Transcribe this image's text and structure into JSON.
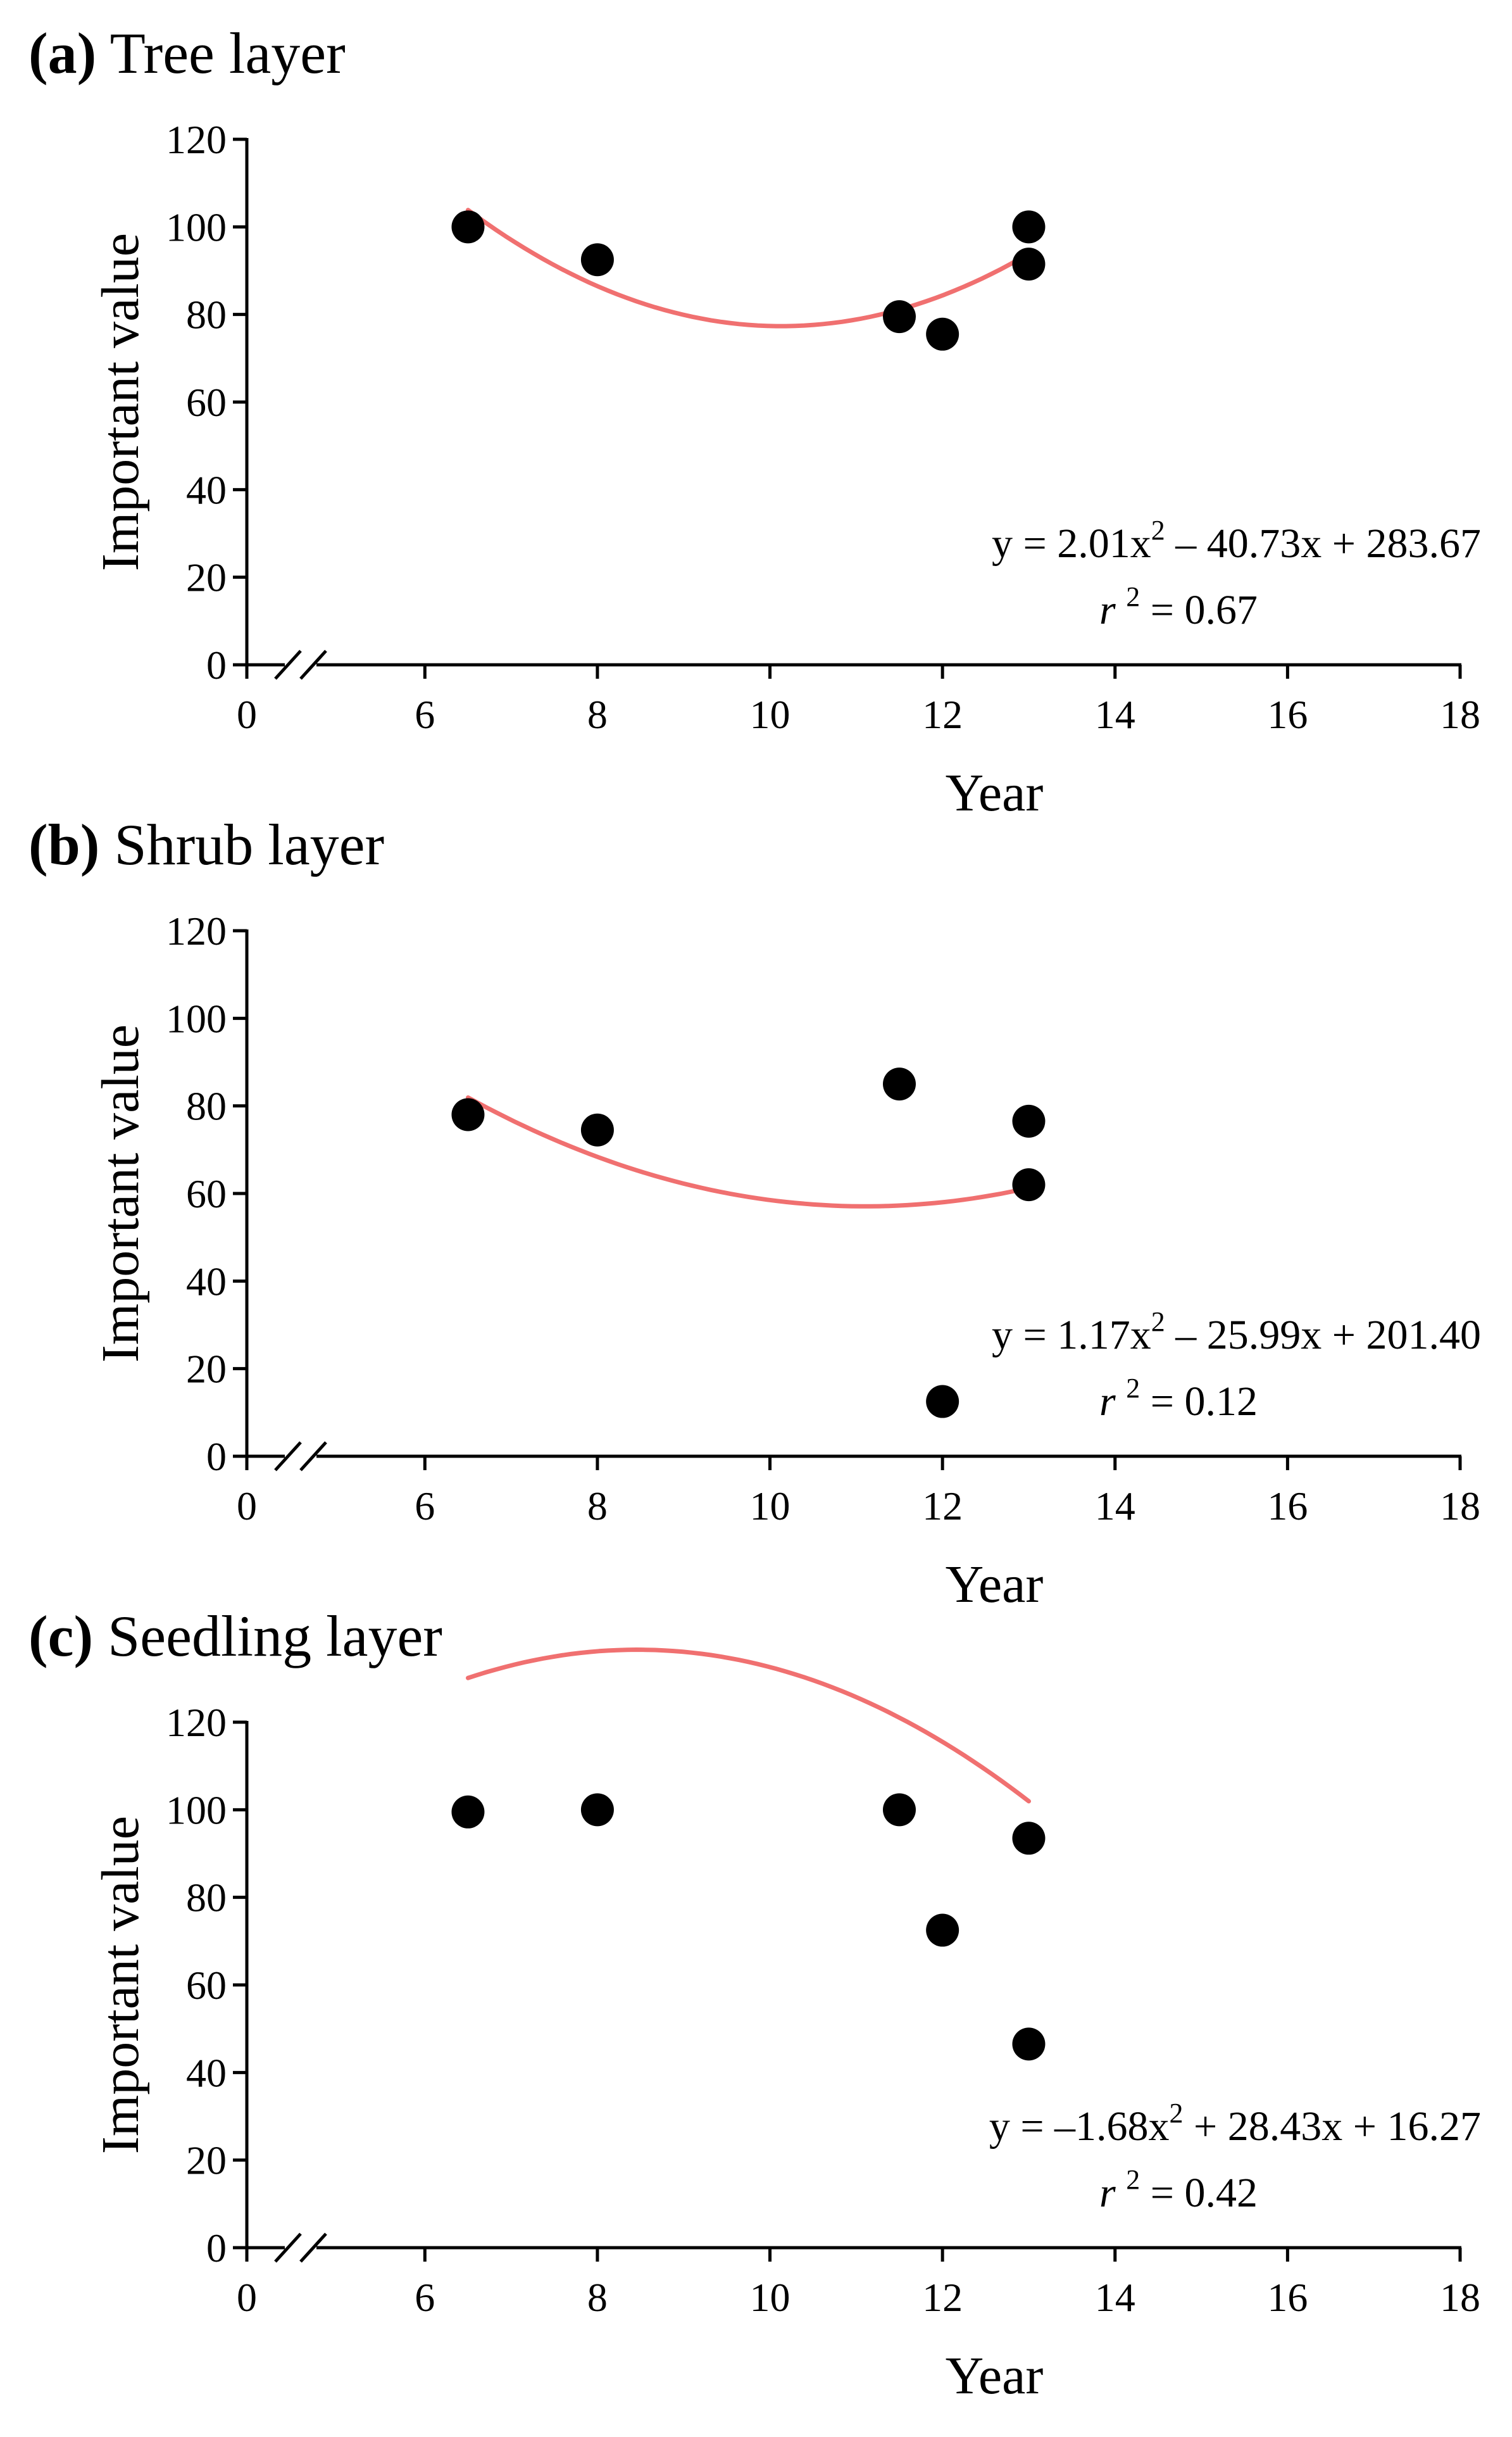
{
  "colors": {
    "points": "#000000",
    "fit_line": "#F07070",
    "axes": "#000000",
    "background": "#FFFFFF"
  },
  "chart_data": [
    {
      "type": "scatter",
      "panel_letter": "(a)",
      "panel_title": "Tree layer",
      "xlabel": "Year",
      "ylabel": "Important value",
      "xlim": [
        0,
        18
      ],
      "ylim": [
        0,
        120
      ],
      "x_axis_break": true,
      "x_ticks": [
        "0",
        "6",
        "8",
        "10",
        "12",
        "14",
        "16",
        "18"
      ],
      "y_ticks": [
        "0",
        "20",
        "40",
        "60",
        "80",
        "100",
        "120"
      ],
      "points": [
        {
          "x": 6.5,
          "y": 100
        },
        {
          "x": 8,
          "y": 92.5
        },
        {
          "x": 11.5,
          "y": 79.5
        },
        {
          "x": 12,
          "y": 75.5
        },
        {
          "x": 13,
          "y": 100
        },
        {
          "x": 13,
          "y": 91.5
        }
      ],
      "fit": {
        "a": 2.01,
        "b": -40.73,
        "c": 283.67,
        "x_from": 6.5,
        "x_to": 13
      },
      "equation": {
        "lhs": "y = 2.01x",
        "power": "2",
        "rhs": " – 40.73x + 283.67"
      },
      "r2": {
        "symbol": "r",
        "power": "2",
        "value": " = 0.67"
      }
    },
    {
      "type": "scatter",
      "panel_letter": "(b)",
      "panel_title": "Shrub layer",
      "xlabel": "Year",
      "ylabel": "Important value",
      "xlim": [
        0,
        18
      ],
      "ylim": [
        0,
        120
      ],
      "x_axis_break": true,
      "x_ticks": [
        "0",
        "6",
        "8",
        "10",
        "12",
        "14",
        "16",
        "18"
      ],
      "y_ticks": [
        "0",
        "20",
        "40",
        "60",
        "80",
        "100",
        "120"
      ],
      "points": [
        {
          "x": 6.5,
          "y": 78
        },
        {
          "x": 8,
          "y": 74.5
        },
        {
          "x": 11.5,
          "y": 85
        },
        {
          "x": 12,
          "y": 12.5
        },
        {
          "x": 13,
          "y": 76.5
        },
        {
          "x": 13,
          "y": 62
        }
      ],
      "fit": {
        "a": 1.17,
        "b": -25.99,
        "c": 201.4,
        "x_from": 6.5,
        "x_to": 13
      },
      "equation": {
        "lhs": "y = 1.17x",
        "power": "2",
        "rhs": " – 25.99x + 201.40"
      },
      "r2": {
        "symbol": "r",
        "power": "2",
        "value": " = 0.12"
      }
    },
    {
      "type": "scatter",
      "panel_letter": "(c)",
      "panel_title": "Seedling layer",
      "xlabel": "Year",
      "ylabel": "Important value",
      "xlim": [
        0,
        18
      ],
      "ylim": [
        0,
        120
      ],
      "x_axis_break": true,
      "x_ticks": [
        "0",
        "6",
        "8",
        "10",
        "12",
        "14",
        "16",
        "18"
      ],
      "y_ticks": [
        "0",
        "20",
        "40",
        "60",
        "80",
        "100",
        "120"
      ],
      "points": [
        {
          "x": 6.5,
          "y": 99.5
        },
        {
          "x": 8,
          "y": 100
        },
        {
          "x": 11.5,
          "y": 100
        },
        {
          "x": 12,
          "y": 72.5
        },
        {
          "x": 13,
          "y": 93.5
        },
        {
          "x": 13,
          "y": 46.5
        }
      ],
      "fit": {
        "a": -1.68,
        "b": 28.43,
        "c": 16.27,
        "x_from": 6.5,
        "x_to": 13
      },
      "equation": {
        "lhs": "y = –1.68x",
        "power": "2",
        "rhs": " + 28.43x + 16.27"
      },
      "r2": {
        "symbol": "r",
        "power": "2",
        "value": " = 0.42"
      }
    }
  ]
}
